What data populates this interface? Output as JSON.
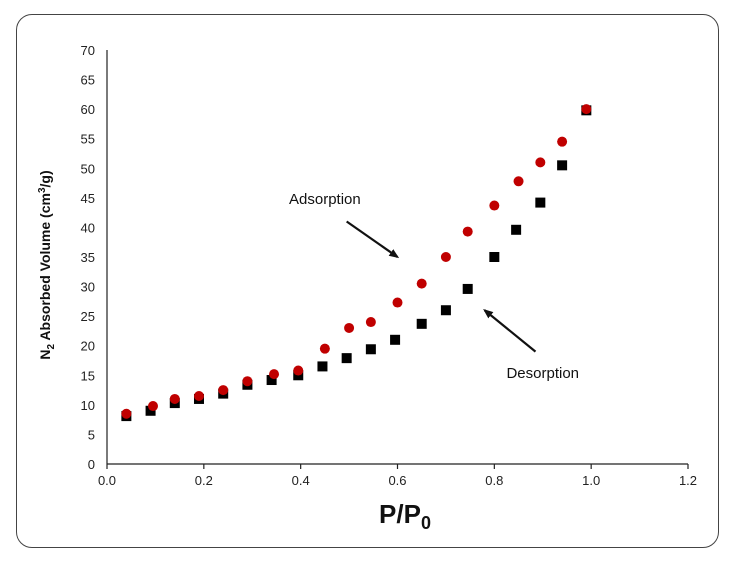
{
  "chart_data": {
    "type": "scatter",
    "title": "",
    "xlabel_main": "P/P",
    "xlabel_sub": "0",
    "ylabel_parts": [
      "N",
      "2",
      " Absorbed Volume (cm",
      "3",
      "/g)"
    ],
    "xlim": [
      0.0,
      1.2
    ],
    "ylim": [
      0,
      70
    ],
    "x_ticks": [
      "0.0",
      "0.2",
      "0.4",
      "0.6",
      "0.8",
      "1.0",
      "1.2"
    ],
    "y_ticks": [
      "0",
      "5",
      "10",
      "15",
      "20",
      "25",
      "30",
      "35",
      "40",
      "45",
      "50",
      "55",
      "60",
      "65",
      "70"
    ],
    "grid": false,
    "series": [
      {
        "name": "Adsorption",
        "marker": "circle",
        "color": "#c00000",
        "x": [
          0.04,
          0.095,
          0.14,
          0.19,
          0.24,
          0.29,
          0.345,
          0.395,
          0.45,
          0.5,
          0.545,
          0.6,
          0.65,
          0.7,
          0.745,
          0.8,
          0.85,
          0.895,
          0.94,
          0.99
        ],
        "y": [
          8.5,
          9.8,
          11,
          11.5,
          12.5,
          14,
          15.2,
          15.8,
          19.5,
          23,
          24,
          27.3,
          30.5,
          35,
          39.3,
          43.7,
          47.8,
          51,
          54.5,
          60
        ]
      },
      {
        "name": "Desorption",
        "marker": "square",
        "color": "#000000",
        "x": [
          0.04,
          0.09,
          0.14,
          0.19,
          0.24,
          0.29,
          0.34,
          0.395,
          0.445,
          0.495,
          0.545,
          0.595,
          0.65,
          0.7,
          0.745,
          0.8,
          0.845,
          0.895,
          0.94,
          0.99
        ],
        "y": [
          8.1,
          9,
          10.3,
          11,
          11.9,
          13.4,
          14.2,
          15,
          16.5,
          17.9,
          19.4,
          21,
          23.7,
          26,
          29.6,
          35,
          39.6,
          44.2,
          50.5,
          59.8
        ]
      }
    ],
    "annotations": [
      {
        "text": "Adsorption",
        "label_at": [
          0.45,
          44
        ],
        "arrow_from": [
          0.495,
          41
        ],
        "arrow_to": [
          0.6,
          35
        ]
      },
      {
        "text": "Desorption",
        "label_at": [
          0.9,
          14.5
        ],
        "arrow_from": [
          0.885,
          19
        ],
        "arrow_to": [
          0.78,
          26
        ]
      }
    ]
  }
}
